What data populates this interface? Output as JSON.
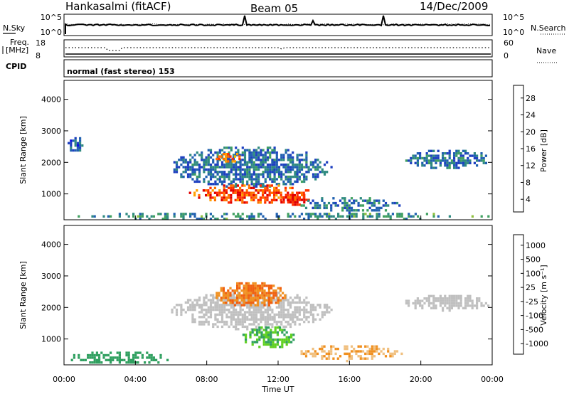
{
  "header": {
    "station": "Hankasalmi (fitACF)",
    "beam": "Beam 05",
    "date": "14/Dec/2009"
  },
  "strip1": {
    "left_label": "N.Sky",
    "left_ticks": [
      "10^5",
      "10^0"
    ],
    "right_label": "N.Search",
    "right_ticks": [
      "10^5",
      "10^0"
    ]
  },
  "strip2": {
    "left_label_1": "Freq.",
    "left_label_2": "[MHz]",
    "left_ticks": [
      "18",
      "8"
    ],
    "right_label": "Nave",
    "right_ticks": [
      "60",
      "0"
    ],
    "cpid_label": "CPID"
  },
  "cpid_text": "normal (fast stereo) 153",
  "x_axis": {
    "label": "Time UT",
    "ticks": [
      "00:00",
      "04:00",
      "08:00",
      "12:00",
      "16:00",
      "20:00",
      "00:00"
    ]
  },
  "panels": {
    "power": {
      "ylabel": "Slant Range [km]",
      "yticks": [
        "4000",
        "3000",
        "2000",
        "1000"
      ]
    },
    "velocity": {
      "ylabel": "Slant Range [km]",
      "yticks": [
        "4000",
        "3000",
        "2000",
        "1000"
      ]
    }
  },
  "colorbars": {
    "power": {
      "label": "Power [dB]",
      "ticks": [
        "28",
        "24",
        "20",
        "16",
        "12",
        "8",
        "4"
      ],
      "colors": [
        "#e00000",
        "#ff3000",
        "#ff7000",
        "#ffa000",
        "#e0c800",
        "#90c040",
        "#40a060",
        "#2f8a80",
        "#2060b0",
        "#1e40c0",
        "#1010e0"
      ]
    },
    "velocity": {
      "label": "Velocity [m s⁻¹]",
      "ticks": [
        "1000",
        "500",
        "100",
        "25",
        "-25",
        "-100",
        "-500",
        "-1000"
      ],
      "colors": [
        "#2030d0",
        "#3070c0",
        "#30a060",
        "#60d020",
        "#c0c0c0",
        "#f0c080",
        "#f09020",
        "#f06010",
        "#e02000"
      ]
    }
  },
  "chart_data": [
    {
      "type": "heatmap",
      "title": "Hankasalmi (fitACF) Beam 05 14/Dec/2009",
      "ylabel": "Slant Range [km]",
      "xlabel": "Time UT",
      "xlim": [
        0,
        24
      ],
      "ylim": [
        180,
        4600
      ],
      "value": "Power [dB]",
      "regions": [
        {
          "t0": 0,
          "t1": 24,
          "r0": 180,
          "r1": 400,
          "level": 10
        },
        {
          "t0": 0.2,
          "t1": 1.2,
          "r0": 2300,
          "r1": 2800,
          "level": 5
        },
        {
          "t0": 6,
          "t1": 15,
          "r0": 1200,
          "r1": 2500,
          "level": 7
        },
        {
          "t0": 8.5,
          "t1": 10,
          "r0": 2000,
          "r1": 2300,
          "level": 25
        },
        {
          "t0": 7,
          "t1": 14,
          "r0": 700,
          "r1": 1300,
          "level": 27
        },
        {
          "t0": 12,
          "t1": 14,
          "r0": 650,
          "r1": 1000,
          "level": 30
        },
        {
          "t0": 13,
          "t1": 19,
          "r0": 400,
          "r1": 900,
          "level": 8
        },
        {
          "t0": 19,
          "t1": 24,
          "r0": 1800,
          "r1": 2400,
          "level": 7
        }
      ]
    },
    {
      "type": "heatmap",
      "ylabel": "Slant Range [km]",
      "xlabel": "Time UT",
      "xlim": [
        0,
        24
      ],
      "ylim": [
        180,
        4600
      ],
      "value": "Velocity [m s-1]",
      "regions": [
        {
          "t0": 0,
          "t1": 6,
          "r0": 180,
          "r1": 600,
          "level": 80
        },
        {
          "t0": 6,
          "t1": 15,
          "r0": 1300,
          "r1": 2500,
          "level": 0
        },
        {
          "t0": 8.5,
          "t1": 12.5,
          "r0": 2000,
          "r1": 2800,
          "level": -300
        },
        {
          "t0": 10,
          "t1": 13,
          "r0": 700,
          "r1": 1400,
          "level": 60
        },
        {
          "t0": 13,
          "t1": 19,
          "r0": 300,
          "r1": 800,
          "level": -60
        },
        {
          "t0": 19,
          "t1": 24,
          "r0": 1900,
          "r1": 2400,
          "level": 0
        }
      ]
    }
  ]
}
